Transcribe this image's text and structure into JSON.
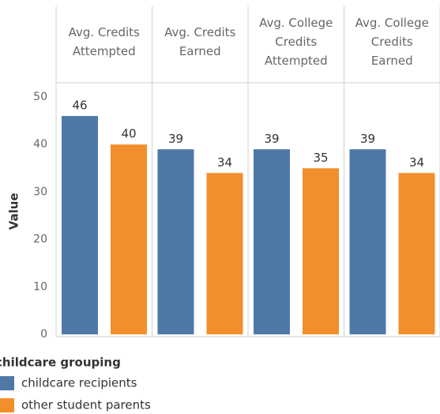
{
  "chart_data": {
    "type": "bar",
    "categories": [
      "Avg. Credits Attempted",
      "Avg. Credits Earned",
      "Avg. College Credits Attempted",
      "Avg. College Credits Earned"
    ],
    "series": [
      {
        "name": "childcare recipients",
        "color": "#4e79a7",
        "values": [
          46,
          39,
          39,
          39
        ]
      },
      {
        "name": "other student parents",
        "color": "#f28e2b",
        "values": [
          40,
          34,
          35,
          34
        ]
      }
    ],
    "ylabel": "Value",
    "ylim": [
      0,
      53
    ],
    "yticks": [
      0,
      10,
      20,
      30,
      40,
      50
    ],
    "grid": false,
    "legend_title": "childcare grouping",
    "legend": "bottom-left"
  }
}
